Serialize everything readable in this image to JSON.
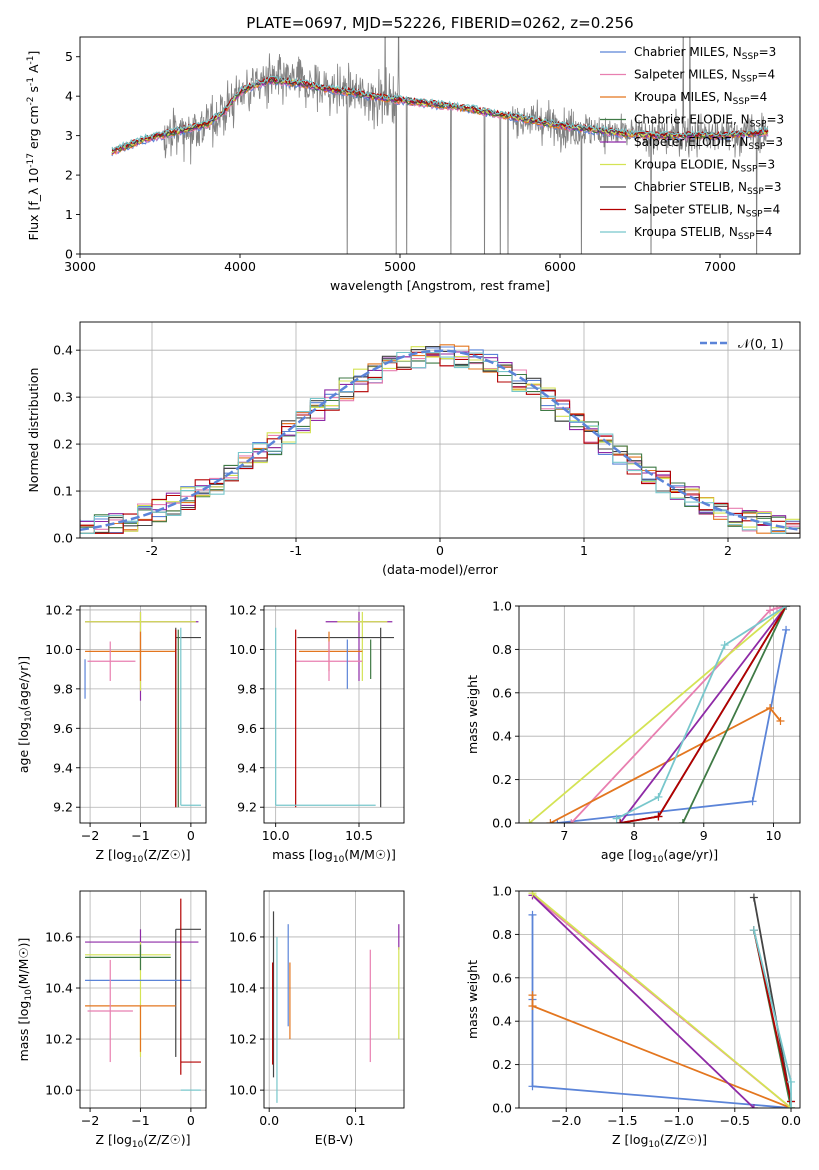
{
  "figure": {
    "title": "PLATE=0697, MJD=52226, FIBERID=0262, z=0.256"
  },
  "colors": {
    "chabrier_miles": "#5b84d8",
    "salpeter_miles": "#e87fb0",
    "kroupa_miles": "#e3761f",
    "chabrier_elodie": "#3f7a45",
    "salpeter_elodie": "#8e2aa6",
    "kroupa_elodie": "#d4e354",
    "chabrier_stelib": "#444444",
    "salpeter_stelib": "#b30000",
    "kroupa_stelib": "#78c7cc",
    "data": "#808080",
    "normal": "#5b84d8"
  },
  "chart_data": [
    {
      "id": "spectrum",
      "type": "line",
      "title": "PLATE=0697, MJD=52226, FIBERID=0262, z=0.256",
      "xlabel": "wavelength [Angstrom, rest frame]",
      "ylabel": "Flux [f_λ 10^-17 erg cm^-2 s^-1 A^-1]",
      "xlim": [
        3000,
        7500
      ],
      "ylim": [
        0,
        5.5
      ],
      "xticks": [
        3000,
        4000,
        5000,
        6000,
        7000
      ],
      "yticks": [
        0,
        1,
        2,
        3,
        4,
        5
      ],
      "legend_position": "top-right",
      "series": [
        {
          "name": "Chabrier MILES, N_SSP=3",
          "key": "chabrier_miles"
        },
        {
          "name": "Salpeter MILES, N_SSP=4",
          "key": "salpeter_miles"
        },
        {
          "name": "Kroupa MILES, N_SSP=4",
          "key": "kroupa_miles"
        },
        {
          "name": "Chabrier ELODIE, N_SSP=3",
          "key": "chabrier_elodie"
        },
        {
          "name": "Salpeter ELODIE, N_SSP=3",
          "key": "salpeter_elodie"
        },
        {
          "name": "Kroupa ELODIE, N_SSP=3",
          "key": "kroupa_elodie"
        },
        {
          "name": "Chabrier STELIB, N_SSP=3",
          "key": "chabrier_stelib"
        },
        {
          "name": "Salpeter STELIB, N_SSP=4",
          "key": "salpeter_stelib"
        },
        {
          "name": "Kroupa STELIB, N_SSP=4",
          "key": "kroupa_stelib"
        }
      ],
      "continuum": {
        "x": [
          3200,
          3300,
          3400,
          3500,
          3600,
          3700,
          3800,
          3900,
          4000,
          4100,
          4200,
          4300,
          4400,
          4500,
          4600,
          4700,
          4800,
          4900,
          5000,
          5200,
          5400,
          5600,
          5800,
          6000,
          6200,
          6400,
          6600,
          6800,
          7000,
          7200,
          7300
        ],
        "y": [
          2.6,
          2.75,
          2.9,
          3.0,
          3.1,
          3.2,
          3.3,
          3.6,
          4.1,
          4.3,
          4.4,
          4.35,
          4.3,
          4.2,
          4.15,
          4.1,
          4.0,
          3.95,
          3.9,
          3.8,
          3.7,
          3.55,
          3.4,
          3.25,
          3.15,
          3.05,
          3.0,
          3.0,
          3.0,
          3.05,
          3.1
        ]
      },
      "data_range": [
        3200,
        7300
      ]
    },
    {
      "id": "residuals",
      "type": "step",
      "xlabel": "(data-model)/error",
      "ylabel": "Normed distribution",
      "xlim": [
        -2.5,
        2.5
      ],
      "ylim": [
        0,
        0.46
      ],
      "xticks": [
        -2,
        -1,
        0,
        1,
        2
      ],
      "yticks": [
        0.0,
        0.1,
        0.2,
        0.3,
        0.4
      ],
      "legend": [
        {
          "name": "𝒩(0, 1)"
        }
      ],
      "bin_width": 0.1
    },
    {
      "id": "age-vs-Z",
      "type": "errorbar",
      "xlabel": "Z [log10(Z/Z☉)]",
      "ylabel": "age [log10(age/yr)]",
      "xlim": [
        -2.2,
        0.3
      ],
      "ylim": [
        9.12,
        10.22
      ],
      "xticks": [
        -2,
        -1,
        0
      ],
      "yticks": [
        9.2,
        9.4,
        9.6,
        9.8,
        10.0,
        10.2
      ],
      "points": [
        {
          "key": "salpeter_elodie",
          "x": -1.0,
          "xerr": [
            1.1,
            1.15
          ],
          "y": 10.14,
          "yerr": [
            0.4,
            0.05
          ]
        },
        {
          "key": "kroupa_elodie",
          "x": -1.0,
          "xerr": [
            1.1,
            1.1
          ],
          "y": 10.14,
          "yerr": [
            0.35,
            0.05
          ]
        },
        {
          "key": "chabrier_stelib",
          "x": -0.3,
          "xerr": [
            0.0,
            0.5
          ],
          "y": 10.06,
          "yerr": [
            0.86,
            0.05
          ]
        },
        {
          "key": "kroupa_miles",
          "x": -1.0,
          "xerr": [
            1.1,
            0.7
          ],
          "y": 9.99,
          "yerr": [
            0.15,
            0.1
          ]
        },
        {
          "key": "salpeter_miles",
          "x": -1.6,
          "xerr": [
            0.45,
            0.5
          ],
          "y": 9.94,
          "yerr": [
            0.1,
            0.1
          ]
        },
        {
          "key": "chabrier_miles",
          "x": -2.1,
          "xerr": [
            0.0,
            0.0
          ],
          "y": 9.85,
          "yerr": [
            0.1,
            0.1
          ]
        },
        {
          "key": "salpeter_stelib",
          "x": -0.3,
          "xerr": [
            0.0,
            0.0
          ],
          "y": 9.75,
          "yerr": [
            0.55,
            0.35
          ]
        },
        {
          "key": "kroupa_stelib",
          "x": -0.2,
          "xerr": [
            0.0,
            0.4
          ],
          "y": 9.21,
          "yerr": [
            0.0,
            0.9
          ]
        },
        {
          "key": "chabrier_elodie",
          "x": -0.25,
          "xerr": [
            0.0,
            0.0
          ],
          "y": 9.6,
          "yerr": [
            0.4,
            0.5
          ]
        }
      ]
    },
    {
      "id": "age-vs-mass",
      "type": "errorbar",
      "xlabel": "mass [log10(M/M☉)]",
      "ylabel": "",
      "xlim": [
        9.93,
        10.77
      ],
      "ylim": [
        9.12,
        10.22
      ],
      "xticks": [
        10.0,
        10.5
      ],
      "yticks": [
        9.2,
        9.4,
        9.6,
        9.8,
        10.0,
        10.2
      ],
      "points": [
        {
          "key": "salpeter_elodie",
          "x": 10.5,
          "xerr": [
            0.2,
            0.2
          ],
          "y": 10.14,
          "yerr": [
            0.3,
            0.05
          ]
        },
        {
          "key": "kroupa_elodie",
          "x": 10.52,
          "xerr": [
            0.15,
            0.15
          ],
          "y": 10.14,
          "yerr": [
            0.3,
            0.05
          ]
        },
        {
          "key": "chabrier_stelib",
          "x": 10.63,
          "xerr": [
            0.5,
            0.08
          ],
          "y": 10.06,
          "yerr": [
            0.86,
            0.05
          ]
        },
        {
          "key": "kroupa_miles",
          "x": 10.32,
          "xerr": [
            0.18,
            0.2
          ],
          "y": 9.99,
          "yerr": [
            0.1,
            0.1
          ]
        },
        {
          "key": "salpeter_miles",
          "x": 10.32,
          "xerr": [
            0.2,
            0.2
          ],
          "y": 9.94,
          "yerr": [
            0.1,
            0.1
          ]
        },
        {
          "key": "chabrier_miles",
          "x": 10.43,
          "xerr": [
            0.0,
            0.0
          ],
          "y": 9.9,
          "yerr": [
            0.1,
            0.15
          ]
        },
        {
          "key": "salpeter_stelib",
          "x": 10.12,
          "xerr": [
            0.0,
            0.0
          ],
          "y": 9.75,
          "yerr": [
            0.55,
            0.35
          ]
        },
        {
          "key": "kroupa_stelib",
          "x": 10.0,
          "xerr": [
            0.0,
            0.6
          ],
          "y": 9.21,
          "yerr": [
            0.0,
            0.9
          ]
        },
        {
          "key": "chabrier_elodie",
          "x": 10.57,
          "xerr": [
            0.0,
            0.0
          ],
          "y": 9.95,
          "yerr": [
            0.1,
            0.1
          ]
        }
      ]
    },
    {
      "id": "weight-vs-age",
      "type": "line",
      "xlabel": "age [log10(age/yr)]",
      "ylabel": "mass weight",
      "xlim": [
        6.35,
        10.38
      ],
      "ylim": [
        0,
        1.0
      ],
      "xticks": [
        7,
        8,
        9,
        10
      ],
      "yticks": [
        0.0,
        0.2,
        0.4,
        0.6,
        0.8,
        1.0
      ],
      "series": [
        {
          "key": "chabrier_miles",
          "x": [
            6.9,
            9.7,
            10.18
          ],
          "y": [
            0.0,
            0.1,
            0.89
          ]
        },
        {
          "key": "salpeter_miles",
          "x": [
            7.1,
            9.95,
            10.05,
            10.18
          ],
          "y": [
            0.0,
            0.98,
            0.99,
            1.0
          ]
        },
        {
          "key": "kroupa_miles",
          "x": [
            6.8,
            9.95,
            10.1
          ],
          "y": [
            0.0,
            0.53,
            0.47
          ]
        },
        {
          "key": "chabrier_elodie",
          "x": [
            8.7,
            10.18
          ],
          "y": [
            0.0,
            1.0
          ]
        },
        {
          "key": "salpeter_elodie",
          "x": [
            7.8,
            10.18
          ],
          "y": [
            0.0,
            1.0
          ]
        },
        {
          "key": "kroupa_elodie",
          "x": [
            6.5,
            10.18
          ],
          "y": [
            0.0,
            1.0
          ]
        },
        {
          "key": "chabrier_stelib",
          "x": [
            7.8,
            8.35,
            10.18
          ],
          "y": [
            0.0,
            0.03,
            1.0
          ]
        },
        {
          "key": "salpeter_stelib",
          "x": [
            7.8,
            8.35,
            10.18
          ],
          "y": [
            0.0,
            0.03,
            1.0
          ]
        },
        {
          "key": "kroupa_stelib",
          "x": [
            7.75,
            8.35,
            9.3,
            10.18
          ],
          "y": [
            0.02,
            0.12,
            0.82,
            1.0
          ]
        }
      ]
    },
    {
      "id": "mass-vs-Z",
      "type": "errorbar",
      "xlabel": "Z [log10(Z/Z☉)]",
      "ylabel": "mass [log10(M/M☉)]",
      "xlim": [
        -2.2,
        0.3
      ],
      "ylim": [
        9.93,
        10.78
      ],
      "xticks": [
        -2,
        -1,
        0
      ],
      "yticks": [
        10.0,
        10.2,
        10.4,
        10.6
      ],
      "points": [
        {
          "key": "chabrier_stelib",
          "x": -0.3,
          "xerr": [
            0.0,
            0.5
          ],
          "y": 10.63,
          "yerr": [
            0.5,
            0.0
          ]
        },
        {
          "key": "salpeter_elodie",
          "x": -1.0,
          "xerr": [
            1.1,
            1.15
          ],
          "y": 10.58,
          "yerr": [
            0.05,
            0.05
          ]
        },
        {
          "key": "kroupa_elodie",
          "x": -1.0,
          "xerr": [
            1.1,
            0.6
          ],
          "y": 10.53,
          "yerr": [
            0.4,
            0.05
          ]
        },
        {
          "key": "chabrier_elodie",
          "x": -1.0,
          "xerr": [
            1.1,
            0.6
          ],
          "y": 10.52,
          "yerr": [
            0.05,
            0.05
          ]
        },
        {
          "key": "chabrier_miles",
          "x": -1.0,
          "xerr": [
            1.1,
            1.0
          ],
          "y": 10.43,
          "yerr": [
            0.0,
            0.0
          ]
        },
        {
          "key": "kroupa_miles",
          "x": -1.0,
          "xerr": [
            1.1,
            0.7
          ],
          "y": 10.33,
          "yerr": [
            0.18,
            0.0
          ]
        },
        {
          "key": "salpeter_miles",
          "x": -1.6,
          "xerr": [
            0.45,
            0.45
          ],
          "y": 10.31,
          "yerr": [
            0.2,
            0.2
          ]
        },
        {
          "key": "salpeter_stelib",
          "x": -0.2,
          "xerr": [
            0.0,
            0.4
          ],
          "y": 10.11,
          "yerr": [
            0.05,
            0.64
          ]
        },
        {
          "key": "kroupa_stelib",
          "x": -0.2,
          "xerr": [
            0.0,
            0.4
          ],
          "y": 10.0,
          "yerr": [
            0.0,
            0.0
          ]
        }
      ]
    },
    {
      "id": "mass-vs-ebv",
      "type": "errorbar",
      "xlabel": "E(B-V)",
      "ylabel": "",
      "xlim": [
        -0.006,
        0.156
      ],
      "ylim": [
        9.93,
        10.78
      ],
      "xticks": [
        0.0,
        0.1
      ],
      "yticks": [
        10.0,
        10.2,
        10.4,
        10.6
      ],
      "points": [
        {
          "key": "chabrier_stelib",
          "x": 0.005,
          "y": 10.4,
          "yerr": [
            0.35,
            0.3
          ]
        },
        {
          "key": "salpeter_stelib",
          "x": 0.004,
          "y": 10.4,
          "yerr": [
            0.3,
            0.1
          ]
        },
        {
          "key": "kroupa_stelib",
          "x": 0.009,
          "y": 10.3,
          "yerr": [
            0.35,
            0.3
          ]
        },
        {
          "key": "chabrier_miles",
          "x": 0.022,
          "y": 10.45,
          "yerr": [
            0.2,
            0.2
          ]
        },
        {
          "key": "kroupa_miles",
          "x": 0.024,
          "y": 10.3,
          "yerr": [
            0.1,
            0.2
          ]
        },
        {
          "key": "salpeter_miles",
          "x": 0.117,
          "y": 10.33,
          "yerr": [
            0.22,
            0.22
          ]
        },
        {
          "key": "salpeter_elodie",
          "x": 0.15,
          "y": 10.6,
          "yerr": [
            0.05,
            0.05
          ]
        },
        {
          "key": "kroupa_elodie",
          "x": 0.15,
          "y": 10.38,
          "yerr": [
            0.18,
            0.18
          ]
        }
      ]
    },
    {
      "id": "weight-vs-Z",
      "type": "line",
      "xlabel": "Z [log10(Z/Z☉)]",
      "ylabel": "mass weight",
      "xlim": [
        -2.42,
        0.08
      ],
      "ylim": [
        0,
        1.0
      ],
      "xticks": [
        -2.0,
        -1.5,
        -1.0,
        -0.5,
        0.0
      ],
      "yticks": [
        0.0,
        0.2,
        0.4,
        0.6,
        0.8,
        1.0
      ],
      "series": [
        {
          "key": "chabrier_miles",
          "x": [
            -2.3,
            -2.3,
            -2.3,
            0.0
          ],
          "y": [
            0.89,
            0.5,
            0.1,
            0.0
          ]
        },
        {
          "key": "salpeter_miles",
          "x": [
            -2.3,
            0.0
          ],
          "y": [
            0.98,
            0.0
          ]
        },
        {
          "key": "kroupa_miles",
          "x": [
            -2.3,
            -2.3,
            0.0
          ],
          "y": [
            0.52,
            0.47,
            0.0
          ]
        },
        {
          "key": "chabrier_elodie",
          "x": [
            -0.33,
            0.0
          ],
          "y": [
            0.82,
            0.0
          ]
        },
        {
          "key": "salpeter_elodie",
          "x": [
            -2.3,
            -0.33
          ],
          "y": [
            0.98,
            0.0
          ]
        },
        {
          "key": "kroupa_elodie",
          "x": [
            -2.3,
            0.0
          ],
          "y": [
            0.99,
            0.0
          ]
        },
        {
          "key": "chabrier_stelib",
          "x": [
            -0.33,
            0.0
          ],
          "y": [
            0.97,
            0.03
          ]
        },
        {
          "key": "salpeter_stelib",
          "x": [
            -0.33,
            0.0
          ],
          "y": [
            0.82,
            0.03
          ]
        },
        {
          "key": "kroupa_stelib",
          "x": [
            -0.33,
            0.0,
            0.0
          ],
          "y": [
            0.82,
            0.12,
            0.0
          ]
        }
      ]
    }
  ]
}
